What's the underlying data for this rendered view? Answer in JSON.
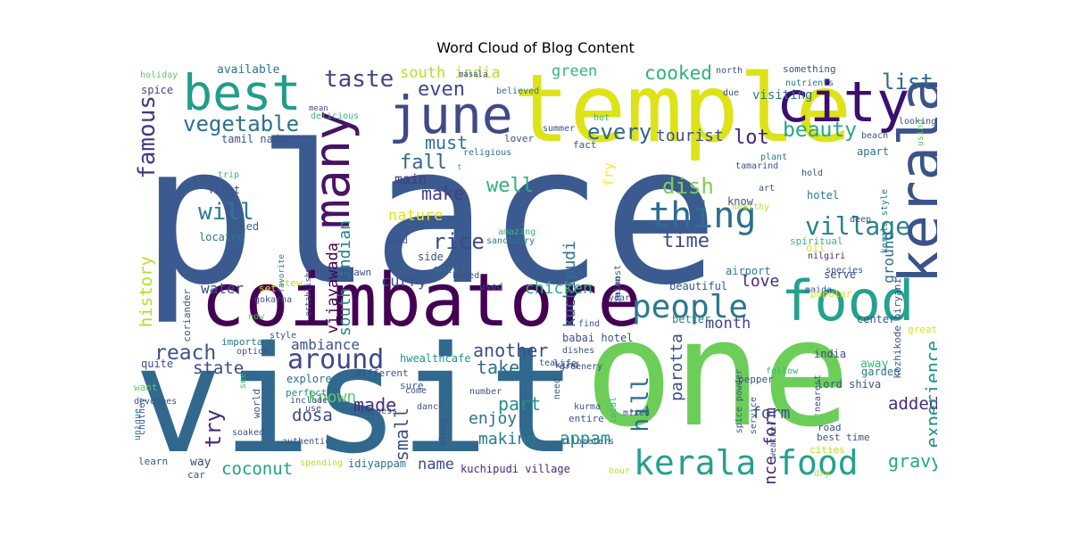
{
  "title": "Word Cloud of Blog Content",
  "words": [
    {
      "text": "place",
      "color": "#3b5a8f"
    },
    {
      "text": "visit",
      "color": "#31688e"
    },
    {
      "text": "one",
      "color": "#6cce59"
    },
    {
      "text": "temple",
      "color": "#dde318"
    },
    {
      "text": "coimbatore",
      "color": "#440154"
    },
    {
      "text": "best",
      "color": "#1f9e89"
    },
    {
      "text": "june",
      "color": "#3e4a89"
    },
    {
      "text": "city",
      "color": "#3b0f70"
    },
    {
      "text": "kerala",
      "color": "#3b528b"
    },
    {
      "text": "food",
      "color": "#25a18e"
    },
    {
      "text": "many",
      "color": "#471365"
    },
    {
      "text": "kerala food",
      "color": "#25a18e"
    },
    {
      "text": "people",
      "color": "#2a788e"
    },
    {
      "text": "thing",
      "color": "#2e6e8e"
    },
    {
      "text": "village",
      "color": "#26828e"
    },
    {
      "text": "around",
      "color": "#3e4989"
    },
    {
      "text": "vegetable",
      "color": "#2c728e"
    },
    {
      "text": "famous",
      "color": "#443983"
    },
    {
      "text": "taste",
      "color": "#3f4788"
    },
    {
      "text": "south india",
      "color": "#b5de2b"
    },
    {
      "text": "even",
      "color": "#404688"
    },
    {
      "text": "green",
      "color": "#35b779"
    },
    {
      "text": "cooked",
      "color": "#2db27d"
    },
    {
      "text": "visiting",
      "color": "#2a768e"
    },
    {
      "text": "list",
      "color": "#31688e"
    },
    {
      "text": "beauty",
      "color": "#22a884"
    },
    {
      "text": "every",
      "color": "#31688e"
    },
    {
      "text": "tourist",
      "color": "#3b528b"
    },
    {
      "text": "lot",
      "color": "#482475"
    },
    {
      "text": "must",
      "color": "#2c728e"
    },
    {
      "text": "fall",
      "color": "#31678e"
    },
    {
      "text": "make",
      "color": "#433e85"
    },
    {
      "text": "well",
      "color": "#2db27d"
    },
    {
      "text": "dish",
      "color": "#7ad151"
    },
    {
      "text": "will",
      "color": "#287c8e"
    },
    {
      "text": "time",
      "color": "#3e4a89"
    },
    {
      "text": "rice",
      "color": "#3e4989"
    },
    {
      "text": "nature",
      "color": "#e5e419"
    },
    {
      "text": "reach",
      "color": "#39558c"
    },
    {
      "text": "state",
      "color": "#3f4889"
    },
    {
      "text": "water",
      "color": "#3b528b"
    },
    {
      "text": "chicken",
      "color": "#29af7f"
    },
    {
      "text": "curry",
      "color": "#3b528b"
    },
    {
      "text": "love",
      "color": "#472c7a"
    },
    {
      "text": "month",
      "color": "#404588"
    },
    {
      "text": "another",
      "color": "#3d4e8a"
    },
    {
      "text": "take",
      "color": "#2c728e"
    },
    {
      "text": "made",
      "color": "#472a7a"
    },
    {
      "text": "part",
      "color": "#20928c"
    },
    {
      "text": "try",
      "color": "#482878"
    },
    {
      "text": "dosa",
      "color": "#3e4989"
    },
    {
      "text": "known",
      "color": "#5ec962"
    },
    {
      "text": "ambiance",
      "color": "#3b528b"
    },
    {
      "text": "enjoy",
      "color": "#2c728e"
    },
    {
      "text": "making",
      "color": "#287d8e"
    },
    {
      "text": "small",
      "color": "#3b528b"
    },
    {
      "text": "name",
      "color": "#3e4a89"
    },
    {
      "text": "appam",
      "color": "#20928c"
    },
    {
      "text": "coconut",
      "color": "#1fa188"
    },
    {
      "text": "gravy",
      "color": "#22a785"
    },
    {
      "text": "added",
      "color": "#472d7b"
    },
    {
      "text": "experience",
      "color": "#21918c"
    },
    {
      "text": "hill",
      "color": "#2d708e"
    },
    {
      "text": "parotta",
      "color": "#3b518b"
    },
    {
      "text": "dance form",
      "color": "#482374"
    },
    {
      "text": "form",
      "color": "#3b528b"
    },
    {
      "text": "ground",
      "color": "#2c728e"
    },
    {
      "text": "south indian",
      "color": "#26828e"
    },
    {
      "text": "vijayawada",
      "color": "#440154"
    },
    {
      "text": "kuchipudi",
      "color": "#2c728e"
    },
    {
      "text": "history",
      "color": "#b5de2b"
    },
    {
      "text": "main",
      "color": "#443a83"
    },
    {
      "text": "fry",
      "color": "#fde725"
    },
    {
      "text": "available",
      "color": "#2c728e"
    },
    {
      "text": "tamil nadu",
      "color": "#3b528b"
    },
    {
      "text": "first",
      "color": "#3b528b"
    },
    {
      "text": "fried",
      "color": "#31688e"
    },
    {
      "text": "located",
      "color": "#2a788e"
    },
    {
      "text": "spice",
      "color": "#404688"
    },
    {
      "text": "holiday",
      "color": "#5ec962"
    },
    {
      "text": "trip",
      "color": "#35b779"
    },
    {
      "text": "quite",
      "color": "#3e4a89"
    },
    {
      "text": "explore",
      "color": "#2e6e8e"
    },
    {
      "text": "perfect",
      "color": "#21918c"
    },
    {
      "text": "different",
      "color": "#3b528b"
    },
    {
      "text": "hwealthcafe",
      "color": "#20928c"
    },
    {
      "text": "world",
      "color": "#39568c"
    },
    {
      "text": "way",
      "color": "#3e4989"
    },
    {
      "text": "idiyappam",
      "color": "#2c728e"
    },
    {
      "text": "kuchipudi village",
      "color": "#482878"
    },
    {
      "text": "beautiful",
      "color": "#3b528b"
    },
    {
      "text": "better",
      "color": "#26828e"
    },
    {
      "text": "center",
      "color": "#3b528b"
    },
    {
      "text": "airport",
      "color": "#2a788e"
    },
    {
      "text": "serve",
      "color": "#3b528b"
    },
    {
      "text": "hotel",
      "color": "#2a788e"
    },
    {
      "text": "know",
      "color": "#3b528b"
    },
    {
      "text": "india",
      "color": "#3e4a89"
    },
    {
      "text": "lord shiva",
      "color": "#3b528b"
    },
    {
      "text": "road",
      "color": "#3b528b"
    },
    {
      "text": "best time",
      "color": "#3b528b"
    },
    {
      "text": "cities",
      "color": "#b5de2b"
    },
    {
      "text": "fish",
      "color": "#5ec962"
    },
    {
      "text": "away",
      "color": "#35b779"
    },
    {
      "text": "garden",
      "color": "#2a788e"
    },
    {
      "text": "great",
      "color": "#dde318"
    },
    {
      "text": "kozhikode biryani",
      "color": "#3b528b"
    },
    {
      "text": "nilgiri",
      "color": "#482878"
    },
    {
      "text": "species",
      "color": "#3b528b"
    },
    {
      "text": "kerala style",
      "color": "#2c728e"
    },
    {
      "text": "oil",
      "color": "#e5e419"
    },
    {
      "text": "spiritual",
      "color": "#35b779"
    },
    {
      "text": "plant",
      "color": "#2a788e"
    },
    {
      "text": "hold",
      "color": "#3b528b"
    },
    {
      "text": "art",
      "color": "#3b528b"
    },
    {
      "text": "deep",
      "color": "#3b528b"
    },
    {
      "text": "healthy",
      "color": "#b5de2b"
    },
    {
      "text": "tamarind",
      "color": "#3b528b"
    },
    {
      "text": "apart",
      "color": "#2c728e"
    },
    {
      "text": "beach",
      "color": "#3b528b"
    },
    {
      "text": "looking",
      "color": "#3b528b"
    },
    {
      "text": "using",
      "color": "#5ec962"
    },
    {
      "text": "north",
      "color": "#3b528b"
    },
    {
      "text": "due",
      "color": "#3b528b"
    },
    {
      "text": "nutrients",
      "color": "#2a788e"
    },
    {
      "text": "something",
      "color": "#3b528b"
    },
    {
      "text": "summer",
      "color": "#3b528b"
    },
    {
      "text": "lover",
      "color": "#3b528b"
    },
    {
      "text": "fact",
      "color": "#3b528b"
    },
    {
      "text": "hot",
      "color": "#35b779"
    },
    {
      "text": "masala",
      "color": "#3b528b"
    },
    {
      "text": "believed",
      "color": "#2c728e"
    },
    {
      "text": "mean",
      "color": "#3b528b"
    },
    {
      "text": "delicious",
      "color": "#35b779"
    },
    {
      "text": "religious",
      "color": "#2c728e"
    },
    {
      "text": "amazing",
      "color": "#35b779"
    },
    {
      "text": "sanctuary",
      "color": "#2a788e"
    },
    {
      "text": "mind",
      "color": "#3b528b"
    },
    {
      "text": "side",
      "color": "#3b528b"
    },
    {
      "text": "ooty",
      "color": "#2c728e"
    },
    {
      "text": "prawn",
      "color": "#3b528b"
    },
    {
      "text": "based",
      "color": "#3b528b"
    },
    {
      "text": "used",
      "color": "#3b528b"
    },
    {
      "text": "stew",
      "color": "#b5de2b"
    },
    {
      "text": "set",
      "color": "#e5e419"
    },
    {
      "text": "establishment",
      "color": "#3b528b"
    },
    {
      "text": "favorite",
      "color": "#2a788e"
    },
    {
      "text": "coriander",
      "color": "#3b528b"
    },
    {
      "text": "now",
      "color": "#5ec962"
    },
    {
      "text": "gokarna",
      "color": "#3b528b"
    },
    {
      "text": "important",
      "color": "#2a788e"
    },
    {
      "text": "style",
      "color": "#3b528b"
    },
    {
      "text": "option",
      "color": "#3b528b"
    },
    {
      "text": "want",
      "color": "#5ec962"
    },
    {
      "text": "devotees",
      "color": "#3b528b"
    },
    {
      "text": "see",
      "color": "#35b779"
    },
    {
      "text": "chutney",
      "color": "#3b528b"
    },
    {
      "text": "unique",
      "color": "#2c728e"
    },
    {
      "text": "soaked",
      "color": "#3b528b"
    },
    {
      "text": "learn",
      "color": "#3b528b"
    },
    {
      "text": "car",
      "color": "#3b528b"
    },
    {
      "text": "spending",
      "color": "#b5de2b"
    },
    {
      "text": "authentic",
      "color": "#3b528b"
    },
    {
      "text": "include",
      "color": "#3b528b"
    },
    {
      "text": "use",
      "color": "#3b528b"
    },
    {
      "text": "witness",
      "color": "#3b528b"
    },
    {
      "text": "sure",
      "color": "#3b528b"
    },
    {
      "text": "come",
      "color": "#3b528b"
    },
    {
      "text": "dance",
      "color": "#3b528b"
    },
    {
      "text": "along",
      "color": "#3b528b"
    },
    {
      "text": "number",
      "color": "#3b528b"
    },
    {
      "text": "need",
      "color": "#3b528b"
    },
    {
      "text": "tea",
      "color": "#3b528b"
    },
    {
      "text": "life",
      "color": "#3b528b"
    },
    {
      "text": "dishes",
      "color": "#3b528b"
    },
    {
      "text": "greenery",
      "color": "#3b528b"
    },
    {
      "text": "kind",
      "color": "#3b528b"
    },
    {
      "text": "kurma",
      "color": "#3b528b"
    },
    {
      "text": "entire",
      "color": "#3b528b"
    },
    {
      "text": "kilometers",
      "color": "#3b528b"
    },
    {
      "text": "local",
      "color": "#35b779"
    },
    {
      "text": "mixed",
      "color": "#3b528b"
    },
    {
      "text": "hour",
      "color": "#b5de2b"
    },
    {
      "text": "find",
      "color": "#3b528b"
    },
    {
      "text": "babai hotel",
      "color": "#3b528b"
    },
    {
      "text": "maida",
      "color": "#3b528b"
    },
    {
      "text": "popular",
      "color": "#dde318"
    },
    {
      "text": "onion",
      "color": "#3b528b"
    },
    {
      "text": "year",
      "color": "#3b528b"
    },
    {
      "text": "almost",
      "color": "#3b528b"
    },
    {
      "text": "spice powder",
      "color": "#3b528b"
    },
    {
      "text": "follow",
      "color": "#35b779"
    },
    {
      "text": "pepper",
      "color": "#3b528b"
    },
    {
      "text": "service",
      "color": "#3b528b"
    },
    {
      "text": "nearest",
      "color": "#3b528b"
    },
    {
      "text": "weather",
      "color": "#3b528b"
    },
    {
      "text": "dry",
      "color": "#b5de2b"
    },
    {
      "text": "t",
      "color": "#35b779"
    }
  ]
}
